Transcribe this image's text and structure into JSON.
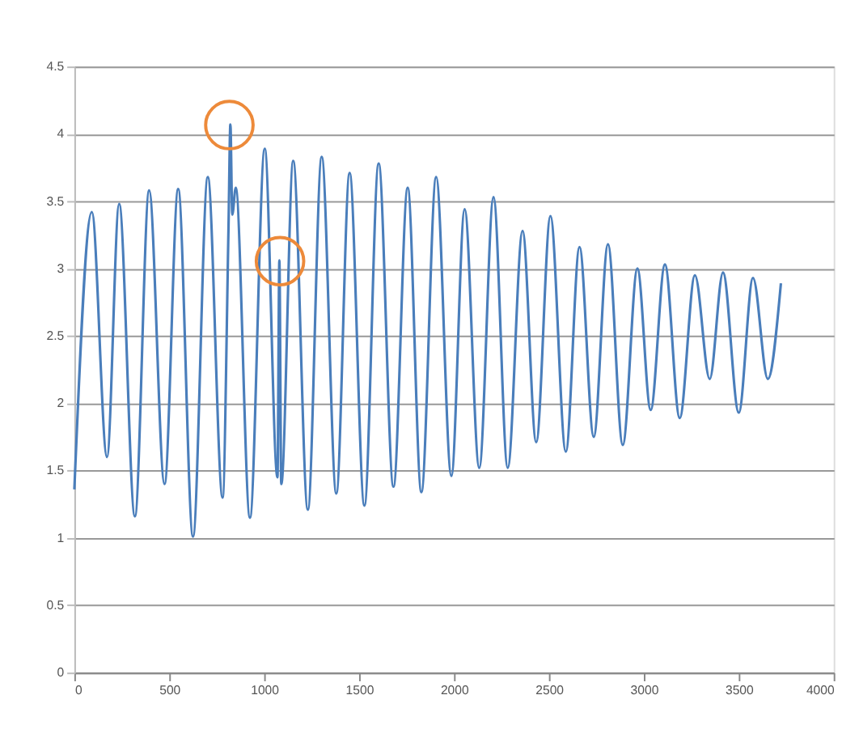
{
  "chart_data": {
    "type": "line",
    "series": [
      {
        "color": "#4a7ebb",
        "x": [
          0,
          92,
          172,
          236,
          319,
          394,
          475,
          547,
          625,
          703,
          781,
          812,
          822,
          832,
          850,
          925,
          1003,
          1070,
          1080,
          1090,
          1153,
          1230,
          1303,
          1380,
          1450,
          1528,
          1603,
          1681,
          1756,
          1828,
          1906,
          1986,
          2056,
          2133,
          2208,
          2283,
          2361,
          2433,
          2508,
          2589,
          2661,
          2736,
          2811,
          2889,
          2966,
          3036,
          3111,
          3189,
          3269,
          3347,
          3417,
          3500,
          3575,
          3653,
          3722
        ],
        "values": [
          1.36,
          3.42,
          1.6,
          3.48,
          1.16,
          3.58,
          1.4,
          3.59,
          1.01,
          3.68,
          1.3,
          3.3,
          4.07,
          3.4,
          3.6,
          1.15,
          3.89,
          1.45,
          3.06,
          1.4,
          3.8,
          1.21,
          3.83,
          1.33,
          3.71,
          1.24,
          3.78,
          1.38,
          3.6,
          1.34,
          3.68,
          1.46,
          3.44,
          1.52,
          3.53,
          1.52,
          3.28,
          1.71,
          3.39,
          1.64,
          3.16,
          1.75,
          3.18,
          1.69,
          3.0,
          1.95,
          3.03,
          1.89,
          2.95,
          2.18,
          2.97,
          1.93,
          2.93,
          2.18,
          2.89
        ]
      }
    ],
    "xlim": [
      0,
      4000
    ],
    "xticks": [
      0,
      500,
      1000,
      1500,
      2000,
      2500,
      3000,
      3500,
      4000
    ],
    "ylim": [
      0,
      4.5
    ],
    "yticks": [
      0,
      0.5,
      1,
      1.5,
      2,
      2.5,
      3,
      3.5,
      4,
      4.5
    ],
    "grid": "y",
    "marker": "none",
    "line_style": "solid"
  }
}
